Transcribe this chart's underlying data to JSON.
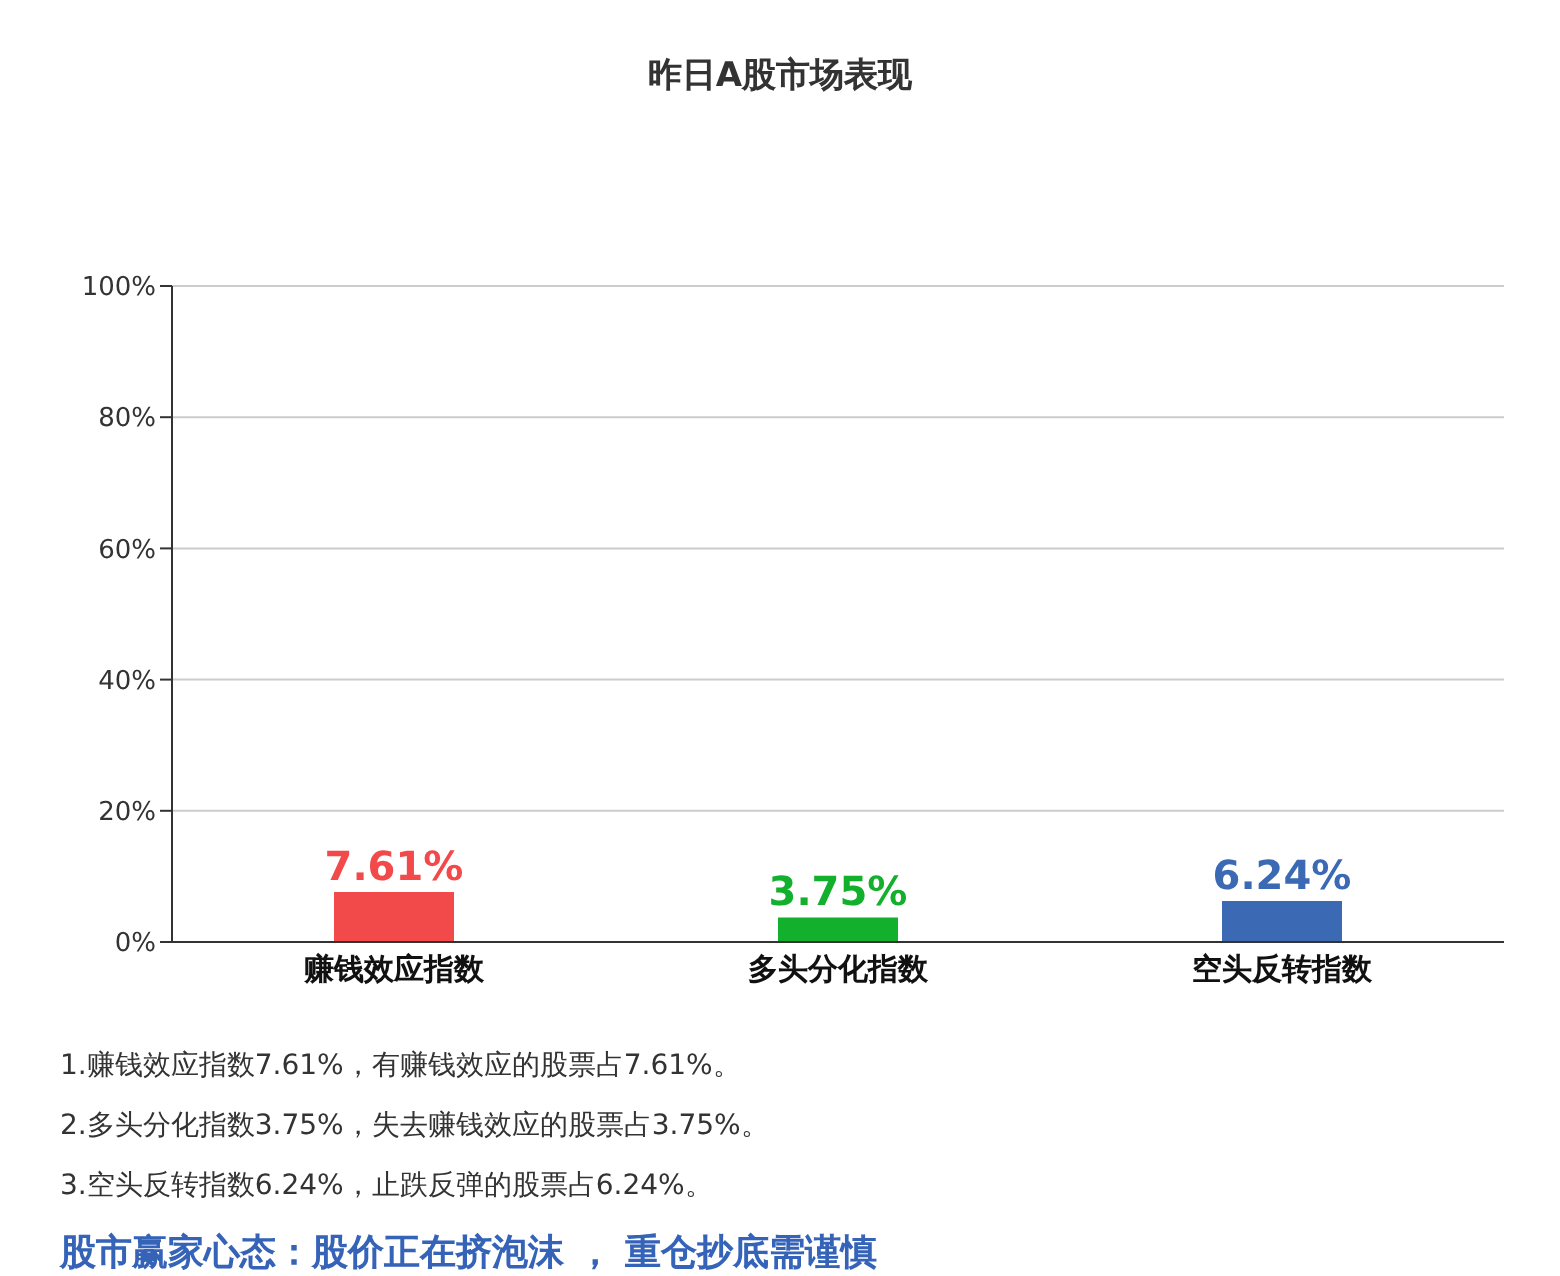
{
  "chart_data": {
    "type": "bar",
    "title": "昨日A股市场表现",
    "categories": [
      "赚钱效应指数",
      "多头分化指数",
      "空头反转指数"
    ],
    "values": [
      7.61,
      3.75,
      6.24
    ],
    "colors": [
      "#f24a4a",
      "#12b02c",
      "#3b69b3"
    ],
    "value_labels": [
      "7.61%",
      "3.75%",
      "6.24%"
    ],
    "ylim": [
      0,
      100
    ],
    "yticks": [
      {
        "value": 0,
        "label": "0%"
      },
      {
        "value": 20,
        "label": "20%"
      },
      {
        "value": 40,
        "label": "40%"
      },
      {
        "value": 60,
        "label": "60%"
      },
      {
        "value": 80,
        "label": "80%"
      },
      {
        "value": 100,
        "label": "100%"
      }
    ],
    "grid": "y",
    "legend": false,
    "annotations": [
      "1.赚钱效应指数7.61%，有赚钱效应的股票占7.61%。",
      "2.多头分化指数3.75%，失去赚钱效应的股票占3.75%。",
      "3.空头反转指数6.24%，止跌反弹的股票占6.24%。",
      "股市赢家心态：股价正在挤泡沫 ， 重仓抄底需谨慎"
    ]
  }
}
